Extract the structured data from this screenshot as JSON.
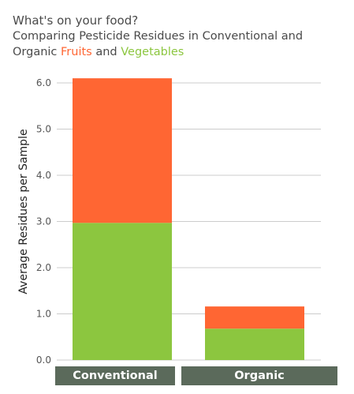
{
  "header": {
    "title": "What's on your food?",
    "subtitle_prefix": "Comparing Pesticide Residues in Conventional and",
    "subtitle_organic": "Organic",
    "subtitle_fruits": "Fruits",
    "subtitle_and": "and",
    "subtitle_vegetables": "Vegetables"
  },
  "colors": {
    "fruits": "#ff6633",
    "vegetables": "#8cc63f",
    "category_box": "#5b6a5b",
    "grid": "#cccccc"
  },
  "chart_data": {
    "type": "bar",
    "stacked": true,
    "categories": [
      "Conventional",
      "Organic"
    ],
    "series": [
      {
        "name": "Vegetables",
        "values": [
          2.97,
          0.68
        ]
      },
      {
        "name": "Fruits",
        "values": [
          3.13,
          0.48
        ]
      }
    ],
    "ylabel": "Average Residues per Sample",
    "ylim": [
      0,
      6.2
    ],
    "yticks": [
      "0.0",
      "1.0",
      "2.0",
      "3.0",
      "4.0",
      "5.0",
      "6.0"
    ],
    "grid": true
  }
}
